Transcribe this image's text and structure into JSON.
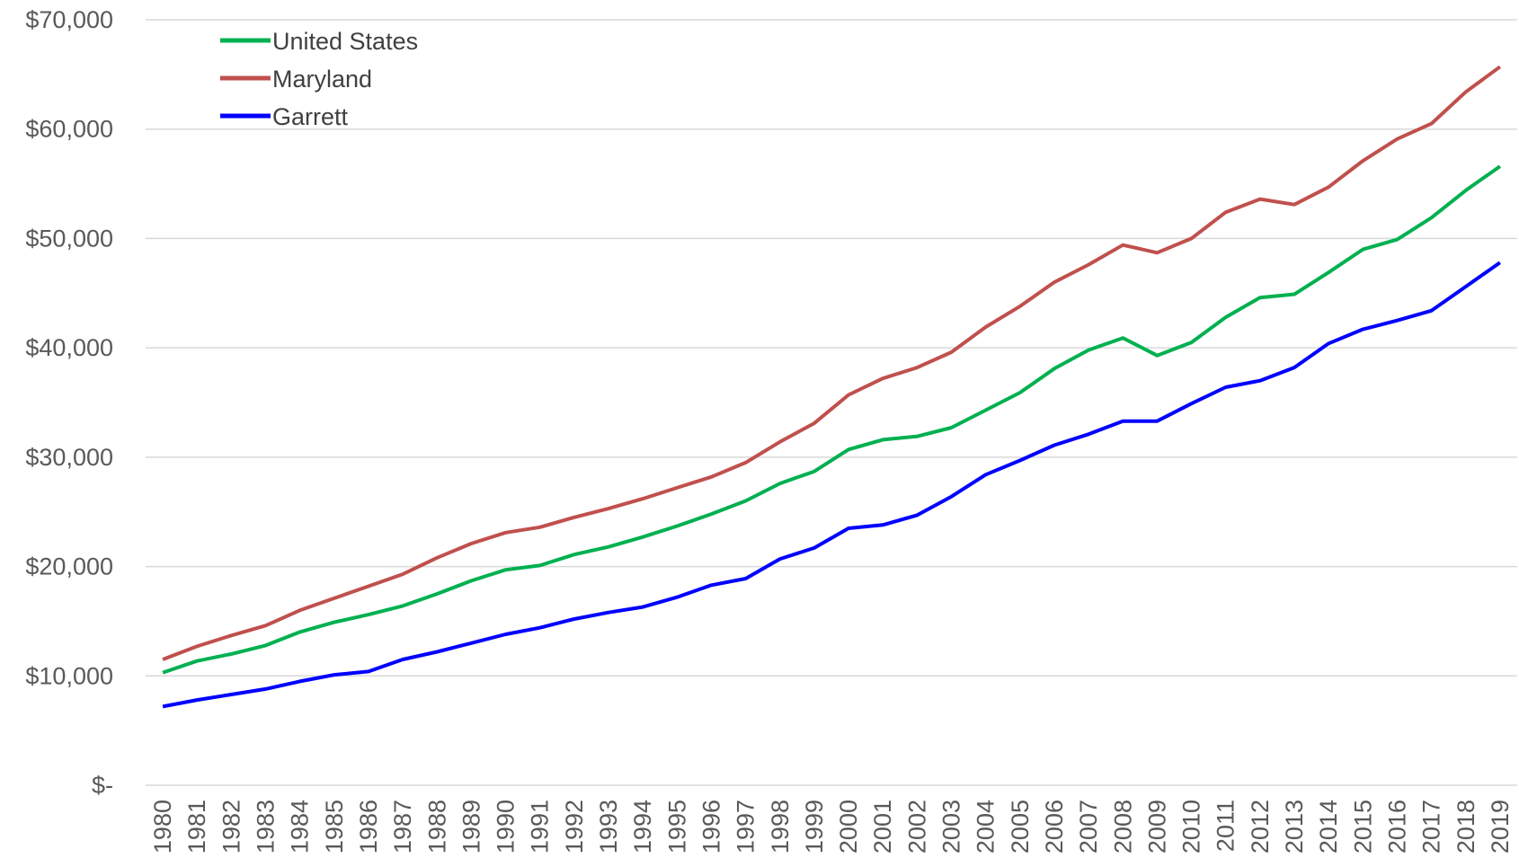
{
  "chart_data": {
    "type": "line",
    "categories": [
      "1980",
      "1981",
      "1982",
      "1983",
      "1984",
      "1985",
      "1986",
      "1987",
      "1988",
      "1989",
      "1990",
      "1991",
      "1992",
      "1993",
      "1994",
      "1995",
      "1996",
      "1997",
      "1998",
      "1999",
      "2000",
      "2001",
      "2002",
      "2003",
      "2004",
      "2005",
      "2006",
      "2007",
      "2008",
      "2009",
      "2010",
      "2011",
      "2012",
      "2013",
      "2014",
      "2015",
      "2016",
      "2017",
      "2018",
      "2019"
    ],
    "series": [
      {
        "name": "United States",
        "color": "#00b050",
        "values": [
          10300,
          11360,
          12000,
          12780,
          14020,
          14900,
          15600,
          16400,
          17500,
          18700,
          19700,
          20100,
          21100,
          21800,
          22700,
          23700,
          24800,
          26000,
          27600,
          28700,
          30700,
          31600,
          31900,
          32700,
          34300,
          35900,
          38100,
          39800,
          40900,
          39300,
          40500,
          42800,
          44600,
          44900,
          46900,
          49000,
          49900,
          51900,
          54400,
          56600
        ]
      },
      {
        "name": "Maryland",
        "color": "#c0504d",
        "values": [
          11500,
          12700,
          13700,
          14600,
          16000,
          17100,
          18200,
          19300,
          20800,
          22100,
          23100,
          23600,
          24500,
          25300,
          26200,
          27200,
          28200,
          29500,
          31400,
          33100,
          35700,
          37200,
          38200,
          39600,
          41900,
          43800,
          46000,
          47600,
          49400,
          48700,
          50000,
          52400,
          53600,
          53100,
          54700,
          57100,
          59100,
          60500,
          63400,
          65700
        ]
      },
      {
        "name": "Garrett",
        "color": "#0000ff",
        "values": [
          7200,
          7800,
          8300,
          8800,
          9500,
          10100,
          10400,
          11500,
          12200,
          13000,
          13800,
          14400,
          15200,
          15800,
          16300,
          17200,
          18300,
          18900,
          20700,
          21700,
          23500,
          23800,
          24700,
          26400,
          28400,
          29700,
          31100,
          32100,
          33300,
          33300,
          34900,
          36400,
          37000,
          38200,
          40400,
          41700,
          42500,
          43400,
          45600,
          47800
        ]
      }
    ],
    "ylim": [
      0,
      70000
    ],
    "yticks": [
      {
        "value": 0,
        "label": "$-"
      },
      {
        "value": 10000,
        "label": "$10,000"
      },
      {
        "value": 20000,
        "label": "$20,000"
      },
      {
        "value": 30000,
        "label": "$30,000"
      },
      {
        "value": 40000,
        "label": "$40,000"
      },
      {
        "value": 50000,
        "label": "$50,000"
      },
      {
        "value": 60000,
        "label": "$60,000"
      },
      {
        "value": 70000,
        "label": "$70,000"
      }
    ],
    "grid": true,
    "legend": "top-left"
  }
}
